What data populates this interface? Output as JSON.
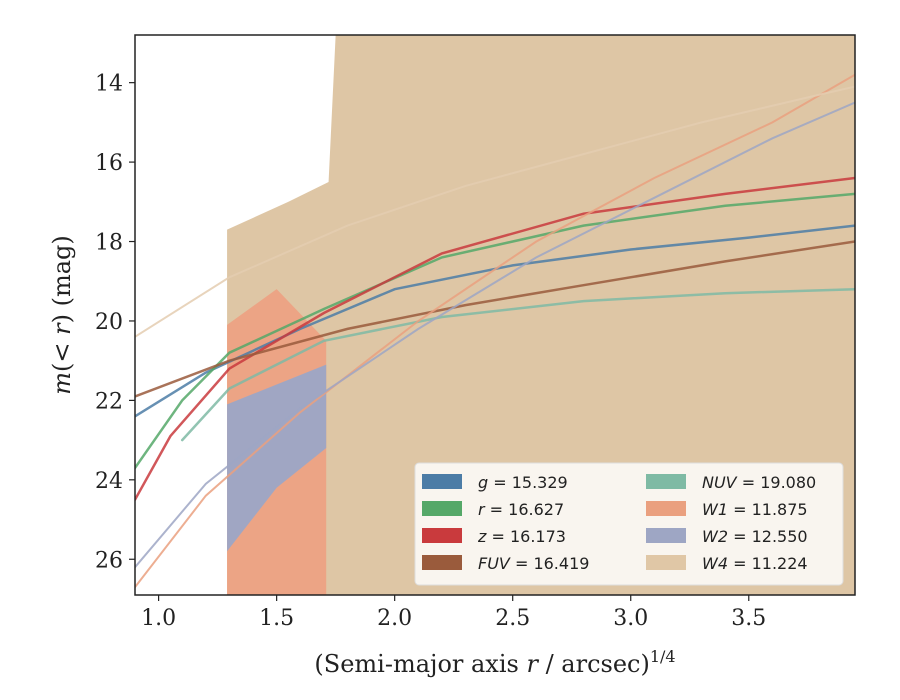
{
  "chart_data": {
    "type": "line",
    "title": "",
    "xlabel_main": "(Semi-major axis ",
    "xlabel_var": "r",
    "xlabel_unit": " / arcsec)",
    "xlabel_exp": "1/4",
    "ylabel_var1": "m",
    "ylabel_mid": "(< ",
    "ylabel_var2": "r",
    "ylabel_end": ") (mag)",
    "xlim": [
      0.9,
      3.95
    ],
    "ylim": [
      26.9,
      12.8
    ],
    "y_inverted": true,
    "xticks": [
      1.0,
      1.5,
      2.0,
      2.5,
      3.0,
      3.5
    ],
    "xtick_labels": [
      "1.0",
      "1.5",
      "2.0",
      "2.5",
      "3.0",
      "3.5"
    ],
    "yticks": [
      14,
      16,
      18,
      20,
      22,
      24,
      26
    ],
    "ytick_labels": [
      "14",
      "16",
      "18",
      "20",
      "22",
      "24",
      "26"
    ],
    "grid": false,
    "legend_position": "lower-right",
    "legend": [
      {
        "band": "g",
        "value": "= 15.329",
        "color": "#4c7ca6"
      },
      {
        "band": "r",
        "value": "= 16.627",
        "color": "#55a868"
      },
      {
        "band": "z",
        "value": "= 16.173",
        "color": "#c93a3d"
      },
      {
        "band": "FUV",
        "value": "= 16.419",
        "color": "#9a5b3c"
      },
      {
        "band": "NUV",
        "value": "= 19.080",
        "color": "#7fbaa4"
      },
      {
        "band": "W1",
        "value": "= 11.875",
        "color": "#eaa07f"
      },
      {
        "band": "W2",
        "value": "= 12.550",
        "color": "#9ea6c4"
      },
      {
        "band": "W4",
        "value": "= 11.224",
        "color": "#e0c7a6"
      }
    ],
    "bands": [
      {
        "name": "W4",
        "color": "#dcc3a0",
        "upper": [
          [
            1.29,
            17.7
          ],
          [
            1.55,
            17.0
          ],
          [
            1.72,
            16.5
          ],
          [
            1.75,
            12.8
          ],
          [
            3.95,
            12.8
          ]
        ],
        "lower": [
          [
            1.29,
            26.9
          ],
          [
            1.65,
            26.9
          ],
          [
            1.72,
            26.9
          ],
          [
            1.75,
            26.9
          ],
          [
            3.95,
            26.9
          ]
        ]
      },
      {
        "name": "W1",
        "color": "#eca283",
        "upper": [
          [
            1.29,
            20.1
          ],
          [
            1.5,
            19.2
          ],
          [
            1.71,
            20.5
          ]
        ],
        "lower": [
          [
            1.29,
            26.9
          ],
          [
            1.5,
            26.9
          ],
          [
            1.71,
            26.9
          ]
        ]
      },
      {
        "name": "W2",
        "color": "#9ca6c6",
        "upper": [
          [
            1.29,
            22.1
          ],
          [
            1.5,
            21.6
          ],
          [
            1.71,
            21.1
          ]
        ],
        "lower": [
          [
            1.29,
            25.8
          ],
          [
            1.5,
            24.2
          ],
          [
            1.71,
            23.2
          ]
        ]
      }
    ],
    "series": [
      {
        "name": "g",
        "color": "#4c7ca6",
        "width": 2.5,
        "points": [
          [
            0.9,
            22.4
          ],
          [
            1.2,
            21.3
          ],
          [
            1.6,
            20.2
          ],
          [
            2.0,
            19.2
          ],
          [
            2.5,
            18.6
          ],
          [
            3.0,
            18.2
          ],
          [
            3.5,
            17.9
          ],
          [
            3.95,
            17.6
          ]
        ]
      },
      {
        "name": "r",
        "color": "#55a868",
        "width": 2.5,
        "points": [
          [
            0.9,
            23.7
          ],
          [
            1.1,
            22.0
          ],
          [
            1.3,
            20.8
          ],
          [
            1.7,
            19.7
          ],
          [
            2.2,
            18.4
          ],
          [
            2.8,
            17.6
          ],
          [
            3.4,
            17.1
          ],
          [
            3.95,
            16.8
          ]
        ]
      },
      {
        "name": "z",
        "color": "#c93a3d",
        "width": 2.5,
        "points": [
          [
            0.9,
            24.5
          ],
          [
            1.05,
            22.9
          ],
          [
            1.3,
            21.2
          ],
          [
            1.7,
            19.8
          ],
          [
            2.2,
            18.3
          ],
          [
            2.8,
            17.3
          ],
          [
            3.4,
            16.8
          ],
          [
            3.95,
            16.4
          ]
        ]
      },
      {
        "name": "FUV",
        "color": "#9a5b3c",
        "width": 2.5,
        "points": [
          [
            0.9,
            21.9
          ],
          [
            1.3,
            21.0
          ],
          [
            1.8,
            20.2
          ],
          [
            2.3,
            19.6
          ],
          [
            2.8,
            19.1
          ],
          [
            3.4,
            18.5
          ],
          [
            3.95,
            18.0
          ]
        ]
      },
      {
        "name": "NUV",
        "color": "#7fbaa4",
        "width": 2.5,
        "points": [
          [
            1.1,
            23.0
          ],
          [
            1.3,
            21.7
          ],
          [
            1.7,
            20.5
          ],
          [
            2.2,
            19.9
          ],
          [
            2.8,
            19.5
          ],
          [
            3.4,
            19.3
          ],
          [
            3.95,
            19.2
          ]
        ]
      },
      {
        "name": "W1",
        "color": "#eaa07f",
        "width": 2.0,
        "points": [
          [
            0.9,
            26.7
          ],
          [
            1.2,
            24.4
          ],
          [
            1.6,
            22.3
          ],
          [
            2.1,
            20.0
          ],
          [
            2.6,
            18.0
          ],
          [
            3.1,
            16.4
          ],
          [
            3.6,
            15.0
          ],
          [
            3.95,
            13.8
          ]
        ]
      },
      {
        "name": "W2",
        "color": "#9ea6c4",
        "width": 2.0,
        "points": [
          [
            0.9,
            26.2
          ],
          [
            1.2,
            24.1
          ],
          [
            1.6,
            22.2
          ],
          [
            2.1,
            20.2
          ],
          [
            2.6,
            18.4
          ],
          [
            3.1,
            16.9
          ],
          [
            3.6,
            15.4
          ],
          [
            3.95,
            14.5
          ]
        ]
      },
      {
        "name": "W4",
        "color": "#e4cdb0",
        "width": 2.0,
        "points": [
          [
            0.9,
            20.4
          ],
          [
            1.3,
            18.9
          ],
          [
            1.8,
            17.6
          ],
          [
            2.3,
            16.6
          ],
          [
            2.8,
            15.8
          ],
          [
            3.3,
            15.0
          ],
          [
            3.8,
            14.3
          ],
          [
            3.95,
            14.1
          ]
        ]
      }
    ]
  }
}
